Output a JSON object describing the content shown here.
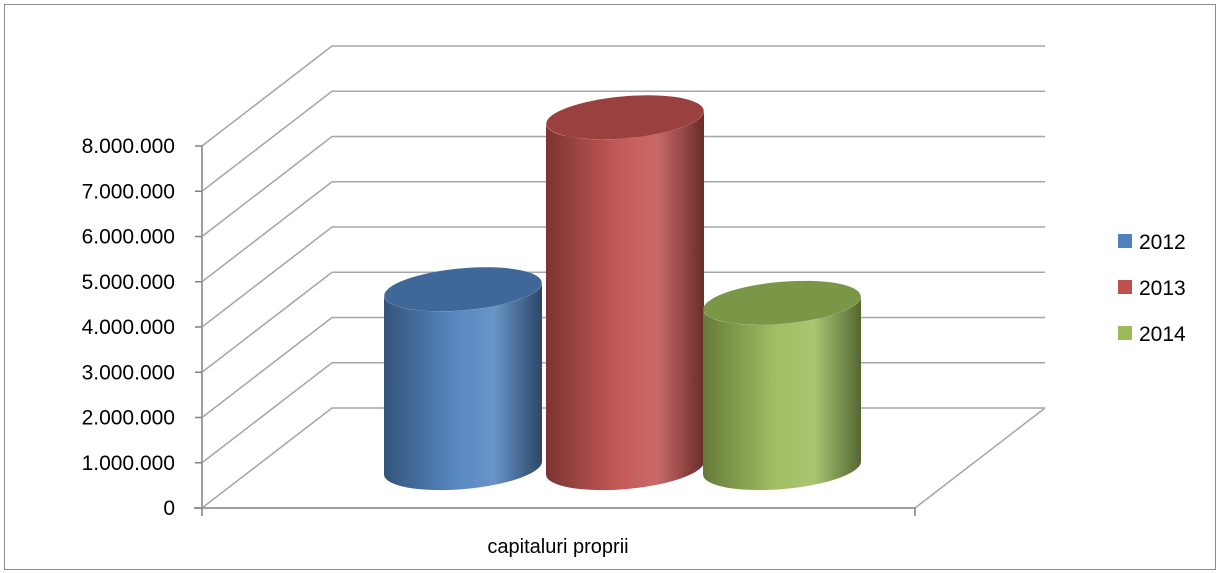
{
  "chart_data": {
    "type": "bar",
    "style": "3d-cylinder",
    "categories": [
      "capitaluri proprii"
    ],
    "series": [
      {
        "name": "2012",
        "values": [
          3950000
        ],
        "color": "#4f81bd"
      },
      {
        "name": "2013",
        "values": [
          7750000
        ],
        "color": "#c0504d"
      },
      {
        "name": "2014",
        "values": [
          3650000
        ],
        "color": "#9bbb59"
      }
    ],
    "y_ticks": [
      "0",
      "1.000.000",
      "2.000.000",
      "3.000.000",
      "4.000.000",
      "5.000.000",
      "6.000.000",
      "7.000.000",
      "8.000.000"
    ],
    "ylim": [
      0,
      8000000
    ],
    "grid": true,
    "legend": "right"
  }
}
